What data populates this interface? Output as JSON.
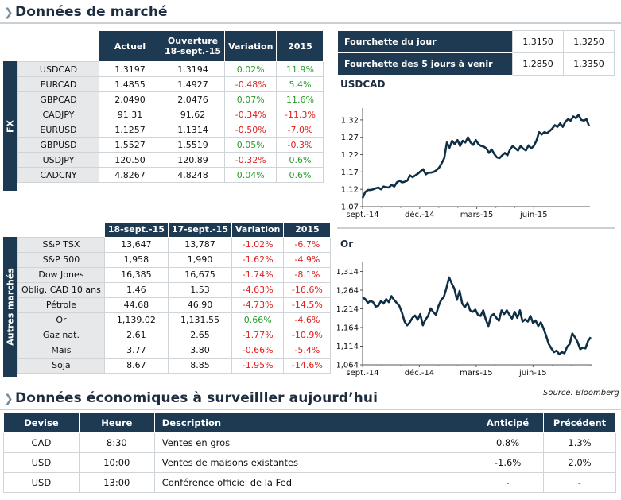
{
  "sections": {
    "market_title": "Données de marché",
    "econ_title": "Données économiques à surveilller aujourd’hui"
  },
  "fx": {
    "side_label": "FX",
    "headers": [
      "Actuel",
      "Ouverture",
      "18-sept.-15",
      "Variation",
      "2015"
    ],
    "rows": [
      {
        "name": "USDCAD",
        "actuel": "1.3197",
        "ouverture": "1.3194",
        "variation": "0.02%",
        "ytd": "11.9%",
        "var_dir": "pos",
        "ytd_dir": "pos"
      },
      {
        "name": "EURCAD",
        "actuel": "1.4855",
        "ouverture": "1.4927",
        "variation": "-0.48%",
        "ytd": "5.4%",
        "var_dir": "neg",
        "ytd_dir": "pos"
      },
      {
        "name": "GBPCAD",
        "actuel": "2.0490",
        "ouverture": "2.0476",
        "variation": "0.07%",
        "ytd": "11.6%",
        "var_dir": "pos",
        "ytd_dir": "pos"
      },
      {
        "name": "CADJPY",
        "actuel": "91.31",
        "ouverture": "91.62",
        "variation": "-0.34%",
        "ytd": "-11.3%",
        "var_dir": "neg",
        "ytd_dir": "neg"
      },
      {
        "name": "EURUSD",
        "actuel": "1.1257",
        "ouverture": "1.1314",
        "variation": "-0.50%",
        "ytd": "-7.0%",
        "var_dir": "neg",
        "ytd_dir": "neg"
      },
      {
        "name": "GBPUSD",
        "actuel": "1.5527",
        "ouverture": "1.5519",
        "variation": "0.05%",
        "ytd": "-0.3%",
        "var_dir": "pos",
        "ytd_dir": "neg"
      },
      {
        "name": "USDJPY",
        "actuel": "120.50",
        "ouverture": "120.89",
        "variation": "-0.32%",
        "ytd": "0.6%",
        "var_dir": "neg",
        "ytd_dir": "pos"
      },
      {
        "name": "CADCNY",
        "actuel": "4.8267",
        "ouverture": "4.8248",
        "variation": "0.04%",
        "ytd": "0.6%",
        "var_dir": "pos",
        "ytd_dir": "pos"
      }
    ]
  },
  "other": {
    "side_label": "Autres marchés",
    "headers": [
      "18-sept.-15",
      "17-sept.-15",
      "Variation",
      "2015"
    ],
    "rows": [
      {
        "name": "S&P TSX",
        "d1": "13,647",
        "d2": "13,787",
        "variation": "-1.02%",
        "ytd": "-6.7%",
        "var_dir": "neg",
        "ytd_dir": "neg"
      },
      {
        "name": "S&P 500",
        "d1": "1,958",
        "d2": "1,990",
        "variation": "-1.62%",
        "ytd": "-4.9%",
        "var_dir": "neg",
        "ytd_dir": "neg"
      },
      {
        "name": "Dow Jones",
        "d1": "16,385",
        "d2": "16,675",
        "variation": "-1.74%",
        "ytd": "-8.1%",
        "var_dir": "neg",
        "ytd_dir": "neg"
      },
      {
        "name": "Oblig. CAD 10 ans",
        "d1": "1.46",
        "d2": "1.53",
        "variation": "-4.63%",
        "ytd": "-16.6%",
        "var_dir": "neg",
        "ytd_dir": "neg"
      },
      {
        "name": "Pétrole",
        "d1": "44.68",
        "d2": "46.90",
        "variation": "-4.73%",
        "ytd": "-14.5%",
        "var_dir": "neg",
        "ytd_dir": "neg"
      },
      {
        "name": "Or",
        "d1": "1,139.02",
        "d2": "1,131.55",
        "variation": "0.66%",
        "ytd": "-4.6%",
        "var_dir": "pos",
        "ytd_dir": "neg"
      },
      {
        "name": "Gaz nat.",
        "d1": "2.61",
        "d2": "2.65",
        "variation": "-1.77%",
        "ytd": "-10.9%",
        "var_dir": "neg",
        "ytd_dir": "neg"
      },
      {
        "name": "Maïs",
        "d1": "3.77",
        "d2": "3.80",
        "variation": "-0.66%",
        "ytd": "-5.4%",
        "var_dir": "neg",
        "ytd_dir": "neg"
      },
      {
        "name": "Soja",
        "d1": "8.67",
        "d2": "8.85",
        "variation": "-1.95%",
        "ytd": "-14.6%",
        "var_dir": "neg",
        "ytd_dir": "neg"
      }
    ]
  },
  "range": {
    "rows": [
      {
        "label": "Fourchette du jour",
        "low": "1.3150",
        "high": "1.3250"
      },
      {
        "label": "Fourchette des 5 jours à venir",
        "low": "1.2850",
        "high": "1.3350"
      }
    ]
  },
  "source": "Source: Bloomberg",
  "chart_data": [
    {
      "type": "line",
      "title": "USDCAD",
      "x_ticks": [
        "sept.-14",
        "déc.-14",
        "mars-15",
        "juin-15"
      ],
      "y_ticks": [
        "1.32",
        "1.27",
        "1.22",
        "1.17",
        "1.12",
        "1.07"
      ],
      "ylim": [
        1.07,
        1.345
      ],
      "xlim": [
        0,
        259
      ],
      "tick_positions": [
        0,
        65,
        130,
        195
      ],
      "x": [
        0,
        3,
        6,
        9,
        12,
        15,
        18,
        21,
        24,
        27,
        30,
        33,
        36,
        39,
        42,
        45,
        48,
        51,
        54,
        57,
        60,
        63,
        66,
        69,
        72,
        75,
        78,
        81,
        84,
        87,
        90,
        93,
        96,
        99,
        102,
        105,
        108,
        111,
        114,
        117,
        120,
        123,
        126,
        129,
        132,
        135,
        138,
        141,
        144,
        147,
        150,
        153,
        156,
        159,
        162,
        165,
        168,
        171,
        174,
        177,
        180,
        183,
        186,
        189,
        192,
        195,
        198,
        201,
        204,
        207,
        210,
        213,
        216,
        219,
        222,
        225,
        228,
        231,
        234,
        237,
        240,
        243,
        246,
        249,
        252,
        255,
        258
      ],
      "y": [
        1.095,
        1.112,
        1.118,
        1.118,
        1.12,
        1.123,
        1.125,
        1.12,
        1.128,
        1.126,
        1.125,
        1.133,
        1.128,
        1.14,
        1.145,
        1.14,
        1.142,
        1.145,
        1.16,
        1.155,
        1.16,
        1.165,
        1.172,
        1.178,
        1.163,
        1.168,
        1.168,
        1.17,
        1.175,
        1.182,
        1.195,
        1.21,
        1.255,
        1.24,
        1.26,
        1.25,
        1.262,
        1.245,
        1.26,
        1.255,
        1.27,
        1.255,
        1.248,
        1.262,
        1.25,
        1.245,
        1.243,
        1.238,
        1.225,
        1.235,
        1.222,
        1.212,
        1.21,
        1.218,
        1.225,
        1.218,
        1.235,
        1.245,
        1.238,
        1.232,
        1.245,
        1.237,
        1.232,
        1.247,
        1.238,
        1.245,
        1.26,
        1.285,
        1.278,
        1.285,
        1.282,
        1.288,
        1.295,
        1.305,
        1.3,
        1.31,
        1.3,
        1.315,
        1.322,
        1.318,
        1.33,
        1.325,
        1.335,
        1.32,
        1.318,
        1.322,
        1.302
      ]
    },
    {
      "type": "line",
      "title": "Or",
      "x_ticks": [
        "sept.-14",
        "déc.-14",
        "mars-15",
        "juin-15"
      ],
      "y_ticks": [
        "1,314",
        "1,264",
        "1,214",
        "1,164",
        "1,114",
        "1,064"
      ],
      "ylim": [
        1064,
        1330
      ],
      "xlim": [
        0,
        262
      ],
      "tick_positions": [
        0,
        65,
        130,
        195
      ],
      "x": [
        0,
        3,
        6,
        9,
        12,
        15,
        18,
        21,
        24,
        27,
        30,
        33,
        36,
        39,
        42,
        45,
        48,
        51,
        54,
        57,
        60,
        63,
        66,
        69,
        72,
        75,
        78,
        81,
        84,
        87,
        90,
        93,
        96,
        99,
        102,
        105,
        108,
        111,
        114,
        117,
        120,
        123,
        126,
        129,
        132,
        135,
        138,
        141,
        144,
        147,
        150,
        153,
        156,
        159,
        162,
        165,
        168,
        171,
        174,
        177,
        180,
        183,
        186,
        189,
        192,
        195,
        198,
        201,
        204,
        207,
        210,
        213,
        216,
        219,
        222,
        225,
        228,
        231,
        234,
        237,
        240,
        243,
        246,
        249,
        252,
        255,
        258,
        261
      ],
      "y": [
        1245,
        1240,
        1230,
        1235,
        1232,
        1220,
        1222,
        1235,
        1228,
        1240,
        1232,
        1248,
        1238,
        1230,
        1222,
        1204,
        1180,
        1170,
        1178,
        1190,
        1196,
        1185,
        1200,
        1170,
        1185,
        1195,
        1215,
        1205,
        1198,
        1222,
        1238,
        1246,
        1270,
        1298,
        1282,
        1268,
        1238,
        1262,
        1228,
        1218,
        1230,
        1210,
        1206,
        1212,
        1198,
        1195,
        1210,
        1185,
        1168,
        1195,
        1200,
        1190,
        1182,
        1210,
        1200,
        1210,
        1198,
        1188,
        1206,
        1190,
        1210,
        1180,
        1186,
        1180,
        1195,
        1176,
        1183,
        1168,
        1178,
        1162,
        1142,
        1120,
        1108,
        1098,
        1102,
        1092,
        1098,
        1095,
        1112,
        1120,
        1148,
        1138,
        1125,
        1106,
        1110,
        1108,
        1128,
        1138
      ]
    }
  ],
  "econ": {
    "headers": [
      "Devise",
      "Heure",
      "Description",
      "Anticipé",
      "Précédent"
    ],
    "rows": [
      {
        "devise": "CAD",
        "heure": "8:30",
        "description": "Ventes en gros",
        "anticipe": "0.8%",
        "precedent": "1.3%"
      },
      {
        "devise": "USD",
        "heure": "10:00",
        "description": "Ventes de maisons existantes",
        "anticipe": "-1.6%",
        "precedent": "2.0%"
      },
      {
        "devise": "USD",
        "heure": "13:00",
        "description": "Conférence officiel de la Fed",
        "anticipe": "-",
        "precedent": "-"
      }
    ]
  }
}
